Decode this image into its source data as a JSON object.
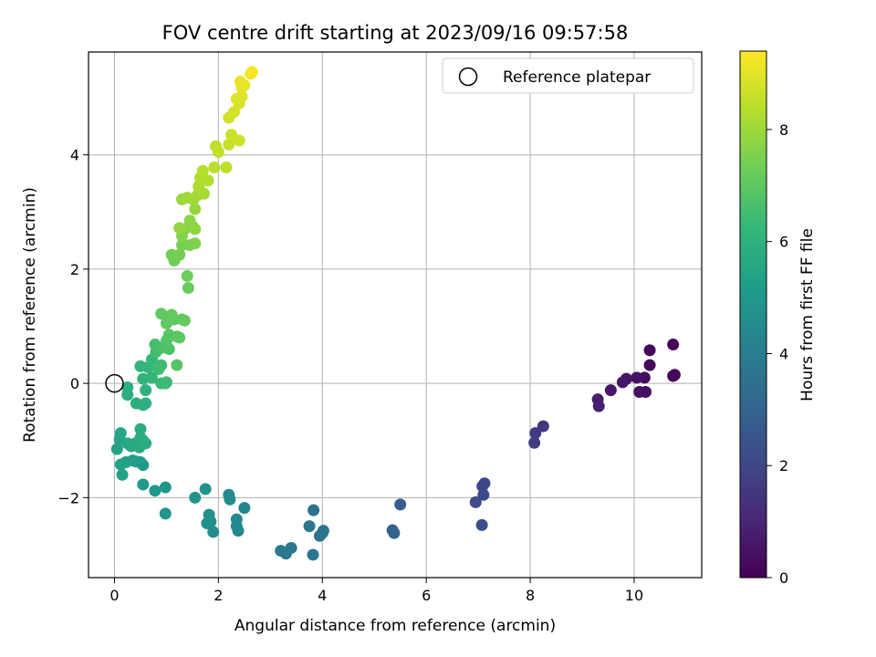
{
  "chart_data": {
    "type": "scatter",
    "title": "FOV centre drift starting at 2023/09/16 09:57:58",
    "xlabel": "Angular distance from reference (arcmin)",
    "ylabel": "Rotation from reference (arcmin)",
    "xlim": [
      -0.5,
      11.3
    ],
    "ylim": [
      -3.4,
      5.8
    ],
    "xticks": [
      "0",
      "2",
      "4",
      "6",
      "8",
      "10"
    ],
    "yticks": [
      "−2",
      "0",
      "2",
      "4"
    ],
    "grid": true,
    "colormap": "viridis",
    "colorbar": {
      "label": "Hours from first FF file",
      "range": [
        0,
        9.4
      ],
      "ticks": [
        "0",
        "2",
        "4",
        "6",
        "8"
      ]
    },
    "legend": {
      "position": "top-right",
      "entries": [
        "Reference platepar"
      ]
    },
    "reference_point": {
      "x": 0,
      "y": 0
    },
    "points": [
      {
        "x": 10.75,
        "y": 0.68,
        "h": 0.05
      },
      {
        "x": 10.75,
        "y": 0.13,
        "h": 0.1
      },
      {
        "x": 10.78,
        "y": 0.15,
        "h": 0.15
      },
      {
        "x": 10.3,
        "y": 0.58,
        "h": 0.2
      },
      {
        "x": 10.3,
        "y": 0.32,
        "h": 0.25
      },
      {
        "x": 10.2,
        "y": 0.1,
        "h": 0.3
      },
      {
        "x": 10.22,
        "y": -0.15,
        "h": 0.35
      },
      {
        "x": 10.1,
        "y": -0.15,
        "h": 0.4
      },
      {
        "x": 10.05,
        "y": 0.1,
        "h": 0.45
      },
      {
        "x": 9.85,
        "y": 0.08,
        "h": 0.5
      },
      {
        "x": 9.78,
        "y": 0.02,
        "h": 0.55
      },
      {
        "x": 9.55,
        "y": -0.12,
        "h": 0.65
      },
      {
        "x": 9.3,
        "y": -0.28,
        "h": 0.75
      },
      {
        "x": 9.32,
        "y": -0.4,
        "h": 0.85
      },
      {
        "x": 8.25,
        "y": -0.75,
        "h": 1.5
      },
      {
        "x": 8.1,
        "y": -0.87,
        "h": 1.6
      },
      {
        "x": 8.08,
        "y": -1.04,
        "h": 1.7
      },
      {
        "x": 7.12,
        "y": -1.75,
        "h": 2.0
      },
      {
        "x": 7.08,
        "y": -1.8,
        "h": 2.05
      },
      {
        "x": 7.1,
        "y": -1.95,
        "h": 2.1
      },
      {
        "x": 6.95,
        "y": -2.08,
        "h": 2.15
      },
      {
        "x": 7.07,
        "y": -2.48,
        "h": 2.25
      },
      {
        "x": 5.5,
        "y": -2.12,
        "h": 2.8
      },
      {
        "x": 5.35,
        "y": -2.57,
        "h": 2.9
      },
      {
        "x": 5.38,
        "y": -2.62,
        "h": 2.95
      },
      {
        "x": 3.83,
        "y": -2.22,
        "h": 3.45
      },
      {
        "x": 4.02,
        "y": -2.58,
        "h": 3.5
      },
      {
        "x": 4.0,
        "y": -2.62,
        "h": 3.55
      },
      {
        "x": 3.95,
        "y": -2.67,
        "h": 3.6
      },
      {
        "x": 3.75,
        "y": -2.5,
        "h": 3.65
      },
      {
        "x": 3.4,
        "y": -2.88,
        "h": 3.75
      },
      {
        "x": 3.3,
        "y": -2.98,
        "h": 3.8
      },
      {
        "x": 3.2,
        "y": -2.93,
        "h": 3.85
      },
      {
        "x": 3.82,
        "y": -3.0,
        "h": 3.7
      },
      {
        "x": 2.5,
        "y": -2.18,
        "h": 4.3
      },
      {
        "x": 2.35,
        "y": -2.38,
        "h": 4.35
      },
      {
        "x": 2.38,
        "y": -2.58,
        "h": 4.4
      },
      {
        "x": 2.35,
        "y": -2.5,
        "h": 4.45
      },
      {
        "x": 2.2,
        "y": -1.95,
        "h": 4.5
      },
      {
        "x": 2.22,
        "y": -2.03,
        "h": 4.55
      },
      {
        "x": 1.9,
        "y": -2.6,
        "h": 4.6
      },
      {
        "x": 1.85,
        "y": -2.42,
        "h": 4.65
      },
      {
        "x": 1.82,
        "y": -2.3,
        "h": 4.7
      },
      {
        "x": 1.78,
        "y": -2.45,
        "h": 4.75
      },
      {
        "x": 1.75,
        "y": -1.85,
        "h": 4.8
      },
      {
        "x": 1.55,
        "y": -2.0,
        "h": 4.85
      },
      {
        "x": 0.98,
        "y": -2.28,
        "h": 4.9
      },
      {
        "x": 0.98,
        "y": -1.82,
        "h": 4.95
      },
      {
        "x": 0.78,
        "y": -1.88,
        "h": 5.0
      },
      {
        "x": 0.55,
        "y": -1.77,
        "h": 5.05
      },
      {
        "x": 0.5,
        "y": -1.38,
        "h": 5.1
      },
      {
        "x": 0.55,
        "y": -1.43,
        "h": 5.15
      },
      {
        "x": 0.42,
        "y": -1.37,
        "h": 5.2
      },
      {
        "x": 0.35,
        "y": -1.35,
        "h": 5.25
      },
      {
        "x": 0.22,
        "y": -1.38,
        "h": 5.3
      },
      {
        "x": 0.12,
        "y": -1.42,
        "h": 5.35
      },
      {
        "x": 0.15,
        "y": -1.6,
        "h": 5.4
      },
      {
        "x": 0.05,
        "y": -1.15,
        "h": 5.45
      },
      {
        "x": 0.1,
        "y": -0.98,
        "h": 5.5
      },
      {
        "x": 0.12,
        "y": -0.87,
        "h": 5.55
      },
      {
        "x": 0.25,
        "y": -1.05,
        "h": 5.6
      },
      {
        "x": 0.32,
        "y": -1.1,
        "h": 5.65
      },
      {
        "x": 0.4,
        "y": -1.05,
        "h": 5.7
      },
      {
        "x": 0.48,
        "y": -1.12,
        "h": 5.72
      },
      {
        "x": 0.5,
        "y": -0.95,
        "h": 5.75
      },
      {
        "x": 0.5,
        "y": -0.8,
        "h": 5.78
      },
      {
        "x": 0.55,
        "y": -1.0,
        "h": 5.8
      },
      {
        "x": 0.6,
        "y": -1.05,
        "h": 5.82
      },
      {
        "x": 0.25,
        "y": -0.2,
        "h": 5.85
      },
      {
        "x": 0.25,
        "y": -0.07,
        "h": 5.88
      },
      {
        "x": 0.42,
        "y": -0.35,
        "h": 5.9
      },
      {
        "x": 0.55,
        "y": -0.38,
        "h": 5.93
      },
      {
        "x": 0.6,
        "y": -0.35,
        "h": 5.96
      },
      {
        "x": 0.6,
        "y": -0.12,
        "h": 6.0
      },
      {
        "x": 0.55,
        "y": 0.08,
        "h": 6.05
      },
      {
        "x": 0.5,
        "y": 0.3,
        "h": 6.1
      },
      {
        "x": 0.65,
        "y": 0.28,
        "h": 6.15
      },
      {
        "x": 0.72,
        "y": 0.1,
        "h": 6.2
      },
      {
        "x": 0.72,
        "y": 0.42,
        "h": 6.25
      },
      {
        "x": 0.9,
        "y": 0.0,
        "h": 6.3
      },
      {
        "x": 0.98,
        "y": 0.0,
        "h": 6.35
      },
      {
        "x": 1.0,
        "y": 0.02,
        "h": 6.4
      },
      {
        "x": 0.85,
        "y": 0.25,
        "h": 6.45
      },
      {
        "x": 0.9,
        "y": 0.32,
        "h": 6.5
      },
      {
        "x": 0.8,
        "y": 0.55,
        "h": 6.55
      },
      {
        "x": 0.78,
        "y": 0.68,
        "h": 6.6
      },
      {
        "x": 0.9,
        "y": 0.62,
        "h": 6.65
      },
      {
        "x": 1.05,
        "y": 0.6,
        "h": 6.7
      },
      {
        "x": 1.0,
        "y": 0.65,
        "h": 6.75
      },
      {
        "x": 1.0,
        "y": 0.75,
        "h": 6.8
      },
      {
        "x": 1.2,
        "y": 0.32,
        "h": 6.85
      },
      {
        "x": 1.05,
        "y": 0.85,
        "h": 6.9
      },
      {
        "x": 1.2,
        "y": 0.82,
        "h": 6.95
      },
      {
        "x": 1.25,
        "y": 0.8,
        "h": 7.0
      },
      {
        "x": 0.9,
        "y": 1.22,
        "h": 7.02
      },
      {
        "x": 1.0,
        "y": 1.05,
        "h": 7.05
      },
      {
        "x": 1.15,
        "y": 1.12,
        "h": 7.08
      },
      {
        "x": 1.3,
        "y": 1.12,
        "h": 7.1
      },
      {
        "x": 1.35,
        "y": 1.1,
        "h": 7.12
      },
      {
        "x": 1.1,
        "y": 1.2,
        "h": 7.15
      },
      {
        "x": 1.42,
        "y": 1.67,
        "h": 7.2
      },
      {
        "x": 1.4,
        "y": 1.88,
        "h": 7.25
      },
      {
        "x": 1.15,
        "y": 2.15,
        "h": 7.3
      },
      {
        "x": 1.1,
        "y": 2.25,
        "h": 7.35
      },
      {
        "x": 1.25,
        "y": 2.25,
        "h": 7.4
      },
      {
        "x": 1.3,
        "y": 2.42,
        "h": 7.45
      },
      {
        "x": 1.45,
        "y": 2.42,
        "h": 7.5
      },
      {
        "x": 1.55,
        "y": 2.45,
        "h": 7.55
      },
      {
        "x": 1.3,
        "y": 2.58,
        "h": 7.6
      },
      {
        "x": 1.35,
        "y": 2.7,
        "h": 7.65
      },
      {
        "x": 1.5,
        "y": 2.75,
        "h": 7.7
      },
      {
        "x": 1.45,
        "y": 2.85,
        "h": 7.75
      },
      {
        "x": 1.55,
        "y": 2.7,
        "h": 7.8
      },
      {
        "x": 1.25,
        "y": 2.72,
        "h": 7.85
      },
      {
        "x": 1.55,
        "y": 3.05,
        "h": 7.9
      },
      {
        "x": 1.3,
        "y": 3.22,
        "h": 7.95
      },
      {
        "x": 1.4,
        "y": 3.25,
        "h": 8.0
      },
      {
        "x": 1.52,
        "y": 3.22,
        "h": 8.05
      },
      {
        "x": 1.6,
        "y": 3.3,
        "h": 8.1
      },
      {
        "x": 1.72,
        "y": 3.32,
        "h": 8.15
      },
      {
        "x": 1.62,
        "y": 3.45,
        "h": 8.2
      },
      {
        "x": 1.65,
        "y": 3.6,
        "h": 8.25
      },
      {
        "x": 1.8,
        "y": 3.55,
        "h": 8.3
      },
      {
        "x": 1.7,
        "y": 3.72,
        "h": 8.35
      },
      {
        "x": 1.92,
        "y": 3.78,
        "h": 8.4
      },
      {
        "x": 2.15,
        "y": 3.78,
        "h": 8.45
      },
      {
        "x": 1.95,
        "y": 4.15,
        "h": 8.5
      },
      {
        "x": 2.0,
        "y": 4.05,
        "h": 8.55
      },
      {
        "x": 2.2,
        "y": 4.18,
        "h": 8.6
      },
      {
        "x": 2.25,
        "y": 4.35,
        "h": 8.65
      },
      {
        "x": 2.4,
        "y": 4.25,
        "h": 8.7
      },
      {
        "x": 2.2,
        "y": 4.65,
        "h": 8.75
      },
      {
        "x": 2.3,
        "y": 4.75,
        "h": 8.8
      },
      {
        "x": 2.4,
        "y": 4.9,
        "h": 8.85
      },
      {
        "x": 2.35,
        "y": 4.98,
        "h": 8.9
      },
      {
        "x": 2.45,
        "y": 5.02,
        "h": 8.95
      },
      {
        "x": 2.45,
        "y": 5.18,
        "h": 9.0
      },
      {
        "x": 2.5,
        "y": 5.22,
        "h": 9.05
      },
      {
        "x": 2.42,
        "y": 5.28,
        "h": 9.1
      },
      {
        "x": 2.62,
        "y": 5.42,
        "h": 9.2
      },
      {
        "x": 2.65,
        "y": 5.45,
        "h": 9.3
      }
    ]
  },
  "viridis": [
    "#440154",
    "#482878",
    "#3e4989",
    "#31688e",
    "#26828e",
    "#1f9e89",
    "#35b779",
    "#6ece58",
    "#b5de2b",
    "#fde725"
  ]
}
